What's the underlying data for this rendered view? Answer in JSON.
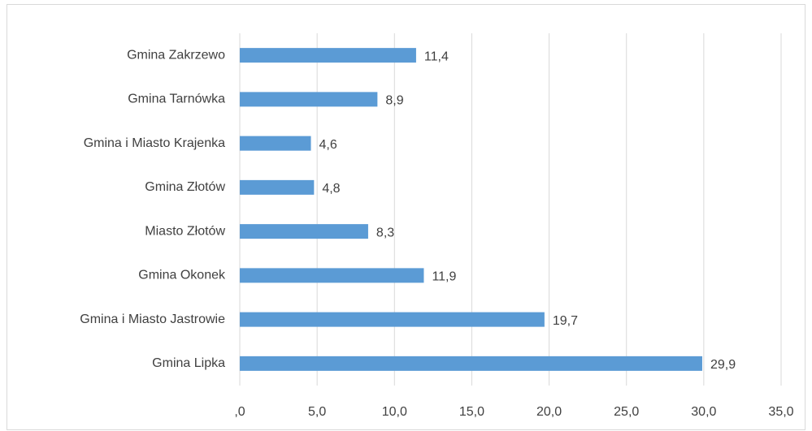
{
  "chart_data": {
    "type": "bar",
    "orientation": "horizontal",
    "categories": [
      "Gmina Zakrzewo",
      "Gmina Tarnówka",
      "Gmina i Miasto Krajenka",
      "Gmina Złotów",
      "Miasto Złotów",
      "Gmina Okonek",
      "Gmina i Miasto Jastrowie",
      "Gmina Lipka"
    ],
    "values": [
      11.4,
      8.9,
      4.6,
      4.8,
      8.3,
      11.9,
      19.7,
      29.9
    ],
    "value_labels": [
      "11,4",
      "8,9",
      "4,6",
      "4,8",
      "8,3",
      "11,9",
      "19,7",
      "29,9"
    ],
    "color": "#5b9bd5",
    "xlim": [
      0,
      35
    ],
    "xticks": [
      {
        "value": 0,
        "label": ",0"
      },
      {
        "value": 5,
        "label": "5,0"
      },
      {
        "value": 10,
        "label": "10,0"
      },
      {
        "value": 15,
        "label": "15,0"
      },
      {
        "value": 20,
        "label": "20,0"
      },
      {
        "value": 25,
        "label": "25,0"
      },
      {
        "value": 30,
        "label": "30,0"
      },
      {
        "value": 35,
        "label": "35,0"
      }
    ],
    "grid": true
  }
}
